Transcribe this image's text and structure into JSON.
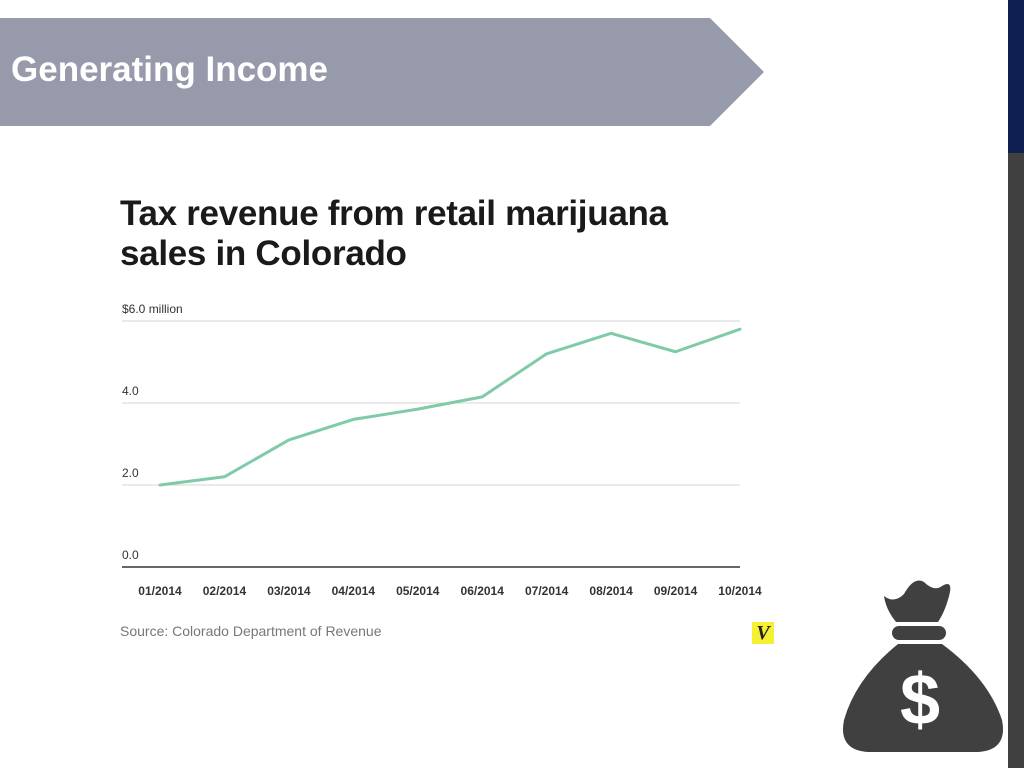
{
  "slide": {
    "title": "Generating Income"
  },
  "colors": {
    "banner": "#979aab",
    "rail_top": "#0f1f4f",
    "rail_bottom": "#404040",
    "line": "#7fcba8",
    "vox_yellow": "#f5f032",
    "icon": "#404040"
  },
  "chart_data": {
    "type": "line",
    "title_lines": [
      "Tax revenue from retail marijuana",
      "sales in Colorado"
    ],
    "categories": [
      "01/2014",
      "02/2014",
      "03/2014",
      "04/2014",
      "05/2014",
      "06/2014",
      "07/2014",
      "08/2014",
      "09/2014",
      "10/2014"
    ],
    "series": [
      {
        "values": [
          2.0,
          2.2,
          3.1,
          3.6,
          3.85,
          4.15,
          5.2,
          5.7,
          5.25,
          5.8
        ]
      }
    ],
    "yticks": [
      "$6.0 million",
      "4.0",
      "2.0",
      "0.0"
    ],
    "ytick_values": [
      6,
      4,
      2,
      0
    ],
    "ylim": [
      0,
      6
    ],
    "grid": true,
    "source": "Source: Colorado Department of Revenue",
    "logo_text": "V"
  },
  "icons": {
    "money_bag": "money-bag-icon",
    "dollar_sign": "$"
  }
}
